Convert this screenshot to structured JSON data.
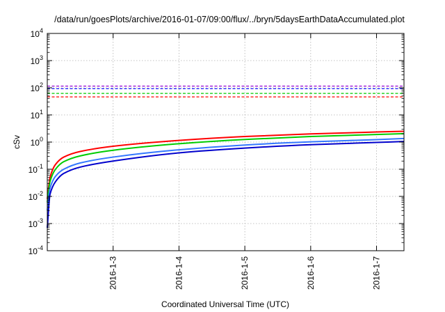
{
  "chart_data": {
    "type": "line",
    "title": "/data/run/goesPlots/archive/2016-01-07/09:00/flux/../bryn/5daysEarthDataAccumulated.plot",
    "xlabel": "Coordinated Universal Time (UTC)",
    "ylabel": "cSv",
    "y_scale": "log",
    "ylim": [
      0.0001,
      10000
    ],
    "xlim": [
      "2016-01-02T00:00",
      "2016-01-07T10:00"
    ],
    "grid": true,
    "legend": "none",
    "y_ticks": [
      {
        "base": "10",
        "exp": "-4"
      },
      {
        "base": "10",
        "exp": "-3"
      },
      {
        "base": "10",
        "exp": "-2"
      },
      {
        "base": "10",
        "exp": "-1"
      },
      {
        "base": "10",
        "exp": "0"
      },
      {
        "base": "10",
        "exp": "1"
      },
      {
        "base": "10",
        "exp": "2"
      },
      {
        "base": "10",
        "exp": "3"
      },
      {
        "base": "10",
        "exp": "4"
      }
    ],
    "x_ticks": [
      {
        "value": "2016-01-03T00:00",
        "label": "2016-1-3"
      },
      {
        "value": "2016-01-04T00:00",
        "label": "2016-1-4"
      },
      {
        "value": "2016-01-05T00:00",
        "label": "2016-1-5"
      },
      {
        "value": "2016-01-06T00:00",
        "label": "2016-1-6"
      },
      {
        "value": "2016-01-07T00:00",
        "label": "2016-1-7"
      }
    ],
    "threshold_lines": [
      {
        "value": 115,
        "color": "#9400d3",
        "style": "dashed"
      },
      {
        "value": 92,
        "color": "#1a1aff",
        "style": "dashed"
      },
      {
        "value": 62,
        "color": "#00cc00",
        "style": "dashed"
      },
      {
        "value": 46,
        "color": "#ff0000",
        "style": "dashed"
      }
    ],
    "series": [
      {
        "color": "#ff0000",
        "x": [
          "2016-01-02T00:00",
          "2016-01-02T01:00",
          "2016-01-02T03:00",
          "2016-01-02T06:00",
          "2016-01-02T12:00",
          "2016-01-03T00:00",
          "2016-01-04T00:00",
          "2016-01-05T00:00",
          "2016-01-06T00:00",
          "2016-01-07T00:00",
          "2016-01-07T10:00"
        ],
        "y": [
          0.008,
          0.05,
          0.15,
          0.28,
          0.45,
          0.7,
          1.15,
          1.6,
          2.0,
          2.35,
          2.5
        ]
      },
      {
        "color": "#00cc00",
        "x": [
          "2016-01-02T00:00",
          "2016-01-02T01:00",
          "2016-01-02T03:00",
          "2016-01-02T06:00",
          "2016-01-02T12:00",
          "2016-01-03T00:00",
          "2016-01-04T00:00",
          "2016-01-05T00:00",
          "2016-01-06T00:00",
          "2016-01-07T00:00",
          "2016-01-07T10:00"
        ],
        "y": [
          0.006,
          0.035,
          0.1,
          0.19,
          0.31,
          0.5,
          0.87,
          1.25,
          1.6,
          1.9,
          2.05
        ]
      },
      {
        "color": "#3377ff",
        "x": [
          "2016-01-02T00:00",
          "2016-01-02T01:00",
          "2016-01-02T03:00",
          "2016-01-02T06:00",
          "2016-01-02T12:00",
          "2016-01-03T00:00",
          "2016-01-04T00:00",
          "2016-01-05T00:00",
          "2016-01-06T00:00",
          "2016-01-07T00:00",
          "2016-01-07T10:00"
        ],
        "y": [
          0.003,
          0.02,
          0.055,
          0.1,
          0.17,
          0.28,
          0.52,
          0.78,
          1.02,
          1.23,
          1.35
        ]
      },
      {
        "color": "#0000cc",
        "x": [
          "2016-01-02T00:00",
          "2016-01-02T01:00",
          "2016-01-02T03:00",
          "2016-01-02T06:00",
          "2016-01-02T12:00",
          "2016-01-03T00:00",
          "2016-01-04T00:00",
          "2016-01-05T00:00",
          "2016-01-06T00:00",
          "2016-01-07T00:00",
          "2016-01-07T10:00"
        ],
        "y": [
          0.0007,
          0.012,
          0.035,
          0.07,
          0.12,
          0.2,
          0.4,
          0.6,
          0.8,
          0.97,
          1.05
        ]
      }
    ]
  }
}
